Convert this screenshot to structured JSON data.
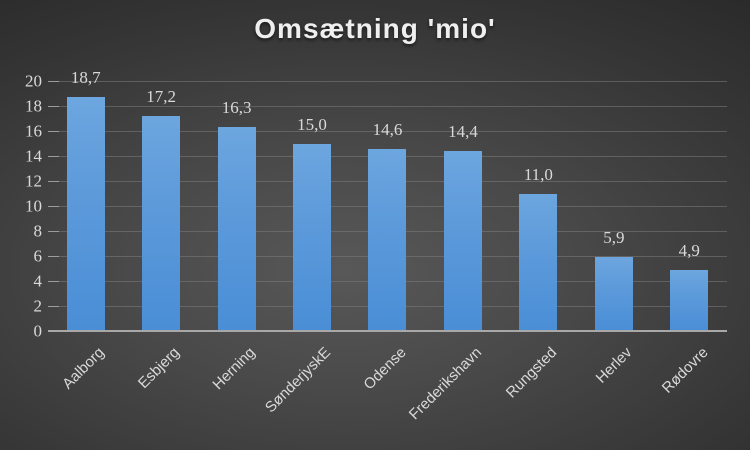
{
  "title": "Omsætning 'mio'",
  "chart_data": {
    "type": "bar",
    "title": "Omsætning 'mio'",
    "categories": [
      "Aalborg",
      "Esbjerg",
      "Herning",
      "SønderjyskE",
      "Odense",
      "Frederikshavn",
      "Rungsted",
      "Herlev",
      "Rødovre"
    ],
    "values": [
      18.7,
      17.2,
      16.3,
      15.0,
      14.6,
      14.4,
      11.0,
      5.9,
      4.9
    ],
    "value_labels": [
      "18,7",
      "17,2",
      "16,3",
      "15,0",
      "14,6",
      "14,4",
      "11,0",
      "5,9",
      "4,9"
    ],
    "xlabel": "",
    "ylabel": "",
    "ylim": [
      0,
      20
    ],
    "yticks": [
      0,
      2,
      4,
      6,
      8,
      10,
      12,
      14,
      16,
      18,
      20
    ],
    "grid": "horizontal",
    "legend": "none",
    "data_labels": "above-bars",
    "category_label_rotation_deg": 45,
    "colors": {
      "bar_top": "#6da6df",
      "bar_bottom": "#4a8ed6",
      "background_center": "#585858",
      "background_edge": "#262626",
      "gridline": "#7b7b7b",
      "axis_line": "#a8a8a8",
      "label_text": "#d9d9d9",
      "title_text": "#efefef"
    }
  }
}
